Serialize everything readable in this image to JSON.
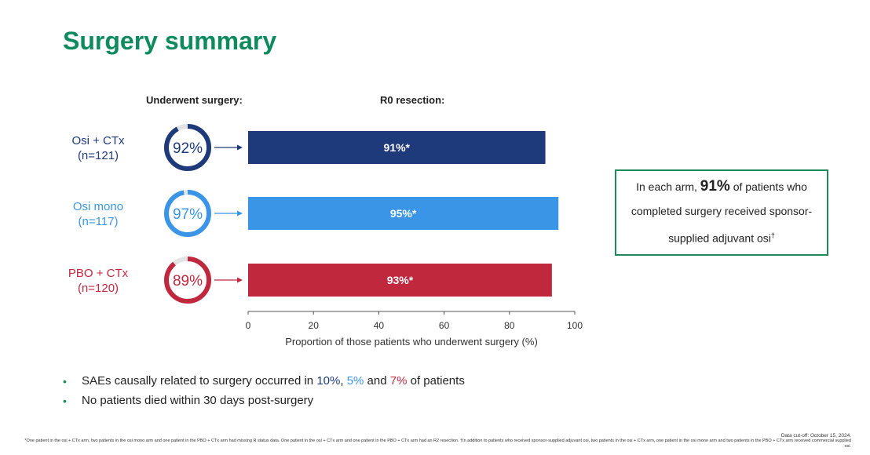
{
  "title": "Surgery summary",
  "headers": {
    "underwent": "Underwent surgery:",
    "r0": "R0 resection:"
  },
  "arms": [
    {
      "name": "Osi + CTx",
      "n": "(n=121)",
      "underwent_pct": 92,
      "underwent_label": "92%",
      "r0_label": "91%*",
      "color": "#1f3a7a"
    },
    {
      "name": "Osi mono",
      "n": "(n=117)",
      "underwent_pct": 97,
      "underwent_label": "97%",
      "r0_label": "95%*",
      "color": "#3b95e6"
    },
    {
      "name": "PBO + CTx",
      "n": "(n=120)",
      "underwent_pct": 89,
      "underwent_label": "89%",
      "r0_label": "93%*",
      "color": "#c0283e"
    }
  ],
  "chart_data": {
    "type": "bar",
    "orientation": "horizontal",
    "categories": [
      "Osi + CTx (n=121)",
      "Osi mono (n=117)",
      "PBO + CTx (n=120)"
    ],
    "values": [
      91,
      95,
      93
    ],
    "data_labels": [
      "91%*",
      "95%*",
      "93%*"
    ],
    "colors": [
      "#1f3a7a",
      "#3b95e6",
      "#c0283e"
    ],
    "xlabel": "Proportion of those patients who underwent surgery (%)",
    "xlim": [
      0,
      100
    ],
    "xticks": [
      0,
      20,
      40,
      60,
      80,
      100
    ],
    "grid": false
  },
  "callout": {
    "pre": "In each arm, ",
    "big": "91%",
    "post": " of patients who completed surgery received sponsor-supplied adjuvant osi",
    "mark": "†"
  },
  "bullets": {
    "b1_pre": "SAEs causally related to surgery occurred in ",
    "b1_v1": "10%",
    "b1_sep1": ", ",
    "b1_v2": "5%",
    "b1_sep2": " and ",
    "b1_v3": "7%",
    "b1_post": " of patients",
    "b2": "No patients died within 30 days post-surgery"
  },
  "cutoff": "Data cut-off: October 15, 2024.",
  "footnote": "*One patient in the osi + CTx arm, two patients in the osi mono arm and one patient in the PBO + CTx arm had missing R status data. One patient in the osi + CTx arm and one patient in the PBO + CTx arm had an R2 resection. †In addition to patients who received sponsor-supplied adjuvant osi, two patients in the osi + CTx arm, one patient in the osi mono arm and two patients in the PBO + CTx arm received commercial supplied osi."
}
